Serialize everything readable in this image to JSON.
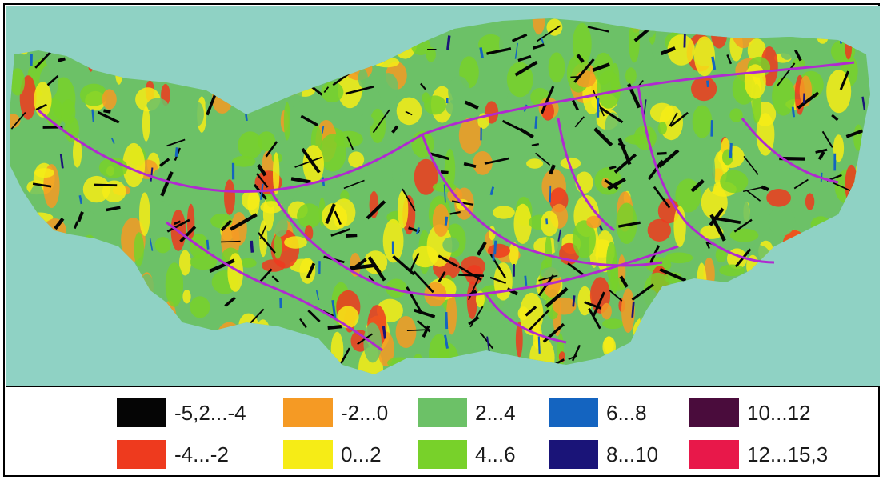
{
  "legend": [
    {
      "label": "-5,2...-4",
      "color": "#050505"
    },
    {
      "label": "-4...-2",
      "color": "#ee3a1e"
    },
    {
      "label": "-2...0",
      "color": "#f59a24"
    },
    {
      "label": "0...2",
      "color": "#f6ec16"
    },
    {
      "label": "2...4",
      "color": "#6cc167"
    },
    {
      "label": "4...6",
      "color": "#78d12a"
    },
    {
      "label": "6...8",
      "color": "#1464c0"
    },
    {
      "label": "8...10",
      "color": "#1a1478"
    },
    {
      "label": "10...12",
      "color": "#4a0c3c"
    },
    {
      "label": "12...15,3",
      "color": "#e8184a"
    }
  ],
  "colors": {
    "background": "#8fd2c4",
    "stream_network": "#b02ad0"
  }
}
